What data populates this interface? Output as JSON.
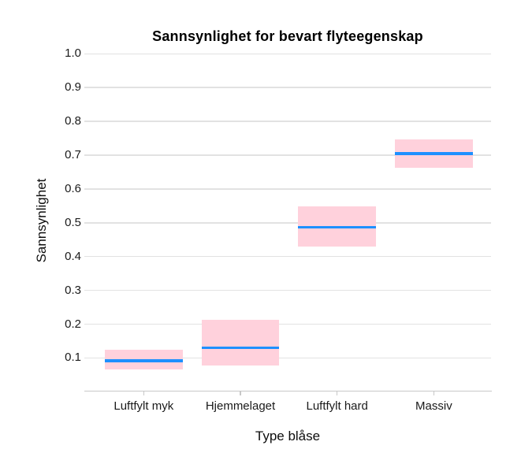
{
  "chart_data": {
    "type": "crossbar",
    "title": "Sannsynlighet for bevart flyteegenskap",
    "xlabel": "Type blåse",
    "ylabel": "Sannsynlighet",
    "categories": [
      "Luftfylt myk",
      "Hjemmelaget",
      "Luftfylt hard",
      "Massiv"
    ],
    "series": [
      {
        "name": "estimate",
        "values": [
          0.092,
          0.13,
          0.487,
          0.705
        ]
      },
      {
        "name": "ci_lower",
        "values": [
          0.066,
          0.078,
          0.429,
          0.663
        ]
      },
      {
        "name": "ci_upper",
        "values": [
          0.124,
          0.212,
          0.549,
          0.746
        ]
      }
    ],
    "ylim": [
      0.0,
      1.0
    ],
    "yticks": [
      0.1,
      0.2,
      0.3,
      0.4,
      0.5,
      0.6,
      0.7,
      0.8,
      0.9,
      1.0
    ],
    "ytick_labels": [
      "0.1",
      "0.2",
      "0.3",
      "0.4",
      "0.5",
      "0.6",
      "0.7",
      "0.8",
      "0.9",
      "1.0"
    ],
    "grid": true,
    "legend": false,
    "colors": {
      "band": "#FFD1DC",
      "line": "#1E90FF",
      "grid": "#E2E2E2",
      "axis": "#C8C8C8",
      "text": "#1A1A1A"
    }
  }
}
